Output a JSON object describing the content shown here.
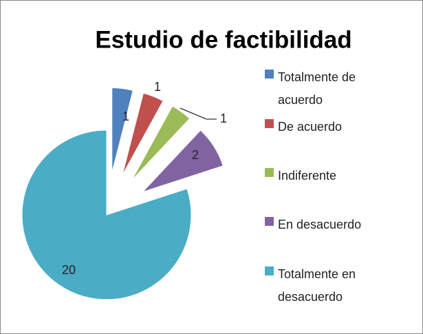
{
  "chart_data": {
    "type": "pie",
    "title": "Estudio de factibilidad",
    "categories": [
      "Totalmente de acuerdo",
      "De acuerdo",
      "Indiferente",
      "En desacuerdo",
      "Totalmente en desacuerdo"
    ],
    "values": [
      1,
      1,
      1,
      2,
      20
    ],
    "colors": [
      "#4F81BD",
      "#C0504D",
      "#9BBB59",
      "#8064A2",
      "#4BACC6"
    ],
    "exploded": [
      true,
      true,
      true,
      true,
      false
    ],
    "legend": "right"
  }
}
